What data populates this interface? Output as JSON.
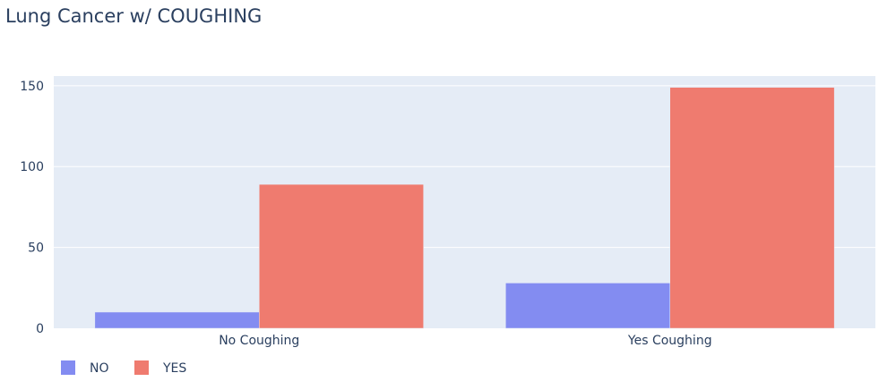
{
  "chart_data": {
    "type": "bar",
    "title": "Lung Cancer w/ COUGHING",
    "categories": [
      "No Coughing",
      "Yes Coughing"
    ],
    "series": [
      {
        "name": "NO",
        "values": [
          10,
          28
        ],
        "color": "#838cf1"
      },
      {
        "name": "YES",
        "values": [
          89,
          149
        ],
        "color": "#ef7b6f"
      }
    ],
    "ylim": [
      0,
      156
    ],
    "yticks": [
      0,
      50,
      100,
      150
    ],
    "grid": true,
    "legend_position": "bottom-left",
    "background_color": "#e5ecf6"
  }
}
